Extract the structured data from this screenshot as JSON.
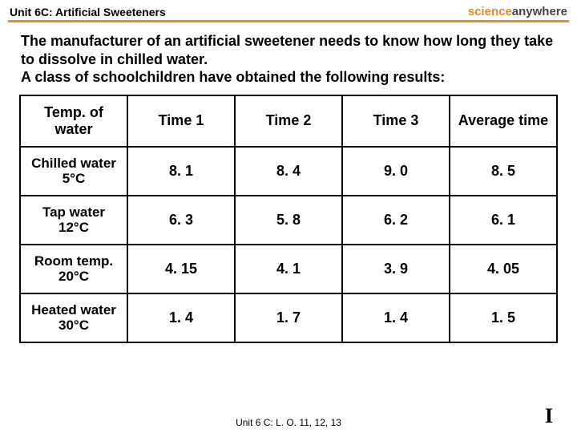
{
  "header": {
    "unit_title": "Unit 6C: Artificial Sweeteners",
    "logo_pre": "science",
    "logo_post": "anywhere"
  },
  "intro_text": "The manufacturer of an artificial sweetener needs to know how long they take to dissolve in chilled water.\nA class of schoolchildren have obtained the following results:",
  "table": {
    "columns": [
      "Temp. of water",
      "Time 1",
      "Time 2",
      "Time 3",
      "Average time"
    ],
    "rows": [
      {
        "label": "Chilled water\n5°C",
        "t1": "8. 1",
        "t2": "8. 4",
        "t3": "9. 0",
        "avg": "8. 5"
      },
      {
        "label": "Tap water\n12°C",
        "t1": "6. 3",
        "t2": "5. 8",
        "t3": "6. 2",
        "avg": "6. 1"
      },
      {
        "label": "Room temp.\n20°C",
        "t1": "4. 15",
        "t2": "4. 1",
        "t3": "3. 9",
        "avg": "4. 05"
      },
      {
        "label": "Heated water\n30°C",
        "t1": "1. 4",
        "t2": "1. 7",
        "t3": "1. 4",
        "avg": "1. 5"
      }
    ],
    "border_color": "#000000",
    "background_color": "#ffffff",
    "header_fontsize": 18,
    "cell_fontsize": 18
  },
  "footer_text": "Unit 6 C: L. O. 11, 12, 13",
  "page_indicator": "I",
  "colors": {
    "accent": "#e88b2b",
    "text": "#000000",
    "background": "#ffffff"
  }
}
